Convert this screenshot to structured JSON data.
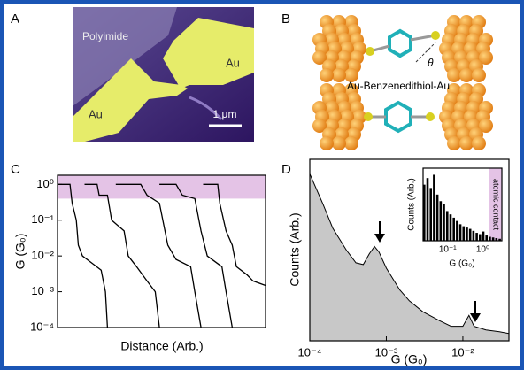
{
  "panel_labels": [
    "A",
    "B",
    "C",
    "D"
  ],
  "panel_a": {
    "labels": [
      "Polyimide",
      "Au",
      "Au"
    ],
    "scale_bar": "1 μm"
  },
  "panel_b": {
    "caption": "Au-Benzenedithiol-Au",
    "angle": "θ"
  },
  "chart_data": [
    {
      "type": "line",
      "y_label": "G (G₀)",
      "x_label": "Distance (Arb.)",
      "log_y": true,
      "xlim": [
        0,
        100
      ],
      "ylim": [
        0.0001,
        1.8
      ],
      "yticks": [
        {
          "value": 1,
          "label": "10⁰"
        },
        {
          "value": 0.1,
          "label": "10⁻¹"
        },
        {
          "value": 0.01,
          "label": "10⁻²"
        },
        {
          "value": 0.001,
          "label": "10⁻³"
        },
        {
          "value": 0.0001,
          "label": "10⁻⁴"
        }
      ],
      "yband": [
        0.4,
        1.8
      ],
      "band_color": "#e4c3e6",
      "series": [
        {
          "color": "#000000",
          "x": [
            0,
            6,
            7,
            9,
            10,
            12,
            17,
            21,
            23,
            24
          ],
          "values": [
            1,
            1,
            0.3,
            0.1,
            0.02,
            0.01,
            0.006,
            0.004,
            0.001,
            0.0001
          ]
        },
        {
          "color": "#000000",
          "x": [
            13,
            19,
            20,
            24,
            26,
            32,
            34,
            38,
            43,
            47,
            49
          ],
          "values": [
            1,
            1,
            0.5,
            0.5,
            0.1,
            0.05,
            0.01,
            0.005,
            0.002,
            0.001,
            0.0001
          ]
        },
        {
          "color": "#000000",
          "x": [
            28,
            40,
            43,
            49,
            53,
            57,
            64,
            66,
            69
          ],
          "values": [
            1,
            1,
            0.5,
            0.3,
            0.02,
            0.008,
            0.005,
            0.001,
            0.0001
          ]
        },
        {
          "color": "#000000",
          "x": [
            49,
            57,
            60,
            66,
            69,
            72,
            79,
            81,
            84
          ],
          "values": [
            1,
            1,
            0.5,
            0.4,
            0.05,
            0.01,
            0.005,
            0.001,
            0.0001
          ]
        },
        {
          "color": "#000000",
          "x": [
            70,
            77,
            78,
            81,
            84,
            86,
            91,
            94,
            100
          ],
          "values": [
            1,
            1,
            0.3,
            0.05,
            0.02,
            0.005,
            0.003,
            0.002,
            0.0015
          ]
        }
      ]
    },
    {
      "type": "area",
      "x_label": "G (G₀)",
      "y_label": "Counts (Arb.)",
      "log_x": true,
      "xlim": [
        0.0001,
        0.04
      ],
      "ylim": [
        0,
        100
      ],
      "xticks": [
        {
          "value": 0.0001,
          "label": "10⁻⁴"
        },
        {
          "value": 0.001,
          "label": "10⁻³"
        },
        {
          "value": 0.01,
          "label": "10⁻²"
        }
      ],
      "color": "#c8c8c8",
      "x": [
        0.0001,
        0.00015,
        0.0002,
        0.0003,
        0.0004,
        0.0005,
        0.0006,
        0.0007,
        0.0008,
        0.001,
        0.0015,
        0.002,
        0.003,
        0.005,
        0.007,
        0.01,
        0.012,
        0.014,
        0.02,
        0.03,
        0.04
      ],
      "values": [
        92,
        75,
        62,
        50,
        43,
        42,
        48,
        52,
        49,
        40,
        28,
        22,
        16,
        11,
        8,
        8,
        14,
        8,
        6,
        5,
        4
      ]
    },
    {
      "type": "histogram",
      "x_label": "G (G₀)",
      "y_label": "Counts (Arb.)",
      "log_x": true,
      "xlim": [
        0.02,
        3.5
      ],
      "ylim": [
        0,
        110
      ],
      "xticks": [
        {
          "value": 0.1,
          "label": "10⁻¹"
        },
        {
          "value": 1,
          "label": "10⁰"
        }
      ],
      "xband": [
        1.5,
        3.5
      ],
      "band_color": "#e4c3e6",
      "band_label": "atomic contact",
      "color": "#000000",
      "bins": [
        0.02,
        0.0248,
        0.0308,
        0.0381,
        0.0473,
        0.0586,
        0.0727,
        0.0901,
        0.112,
        0.139,
        0.172,
        0.213,
        0.264,
        0.328,
        0.406,
        0.504,
        0.625,
        0.775,
        0.961,
        1.19,
        1.48,
        1.83,
        2.27,
        2.82,
        3.5
      ],
      "values": [
        85,
        95,
        80,
        100,
        70,
        60,
        55,
        45,
        40,
        35,
        30,
        25,
        22,
        20,
        18,
        15,
        12,
        10,
        14,
        8,
        6,
        5,
        4,
        3
      ]
    }
  ]
}
